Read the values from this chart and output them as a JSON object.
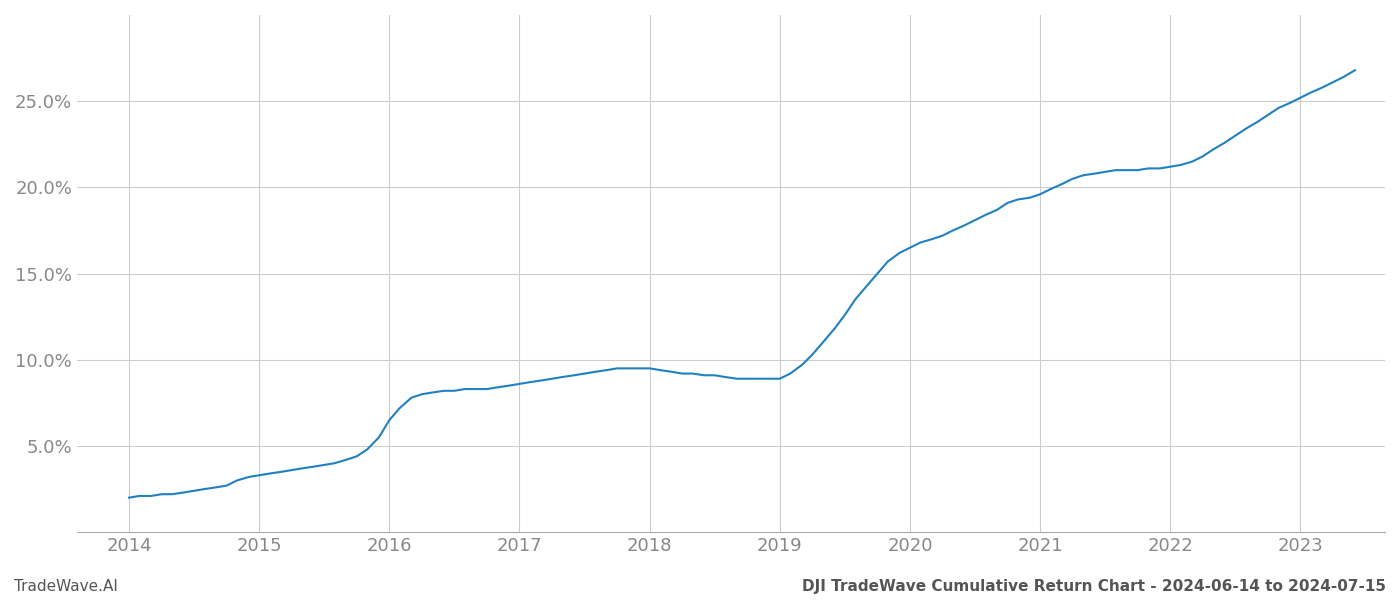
{
  "x_data": [
    2014.0,
    2014.08,
    2014.17,
    2014.25,
    2014.33,
    2014.42,
    2014.5,
    2014.58,
    2014.67,
    2014.75,
    2014.83,
    2014.92,
    2015.0,
    2015.08,
    2015.17,
    2015.25,
    2015.33,
    2015.42,
    2015.5,
    2015.58,
    2015.67,
    2015.75,
    2015.83,
    2015.92,
    2016.0,
    2016.08,
    2016.17,
    2016.25,
    2016.33,
    2016.42,
    2016.5,
    2016.58,
    2016.67,
    2016.75,
    2016.83,
    2016.92,
    2017.0,
    2017.08,
    2017.17,
    2017.25,
    2017.33,
    2017.42,
    2017.5,
    2017.58,
    2017.67,
    2017.75,
    2017.83,
    2017.92,
    2018.0,
    2018.08,
    2018.17,
    2018.25,
    2018.33,
    2018.42,
    2018.5,
    2018.58,
    2018.67,
    2018.75,
    2018.83,
    2018.92,
    2019.0,
    2019.08,
    2019.17,
    2019.25,
    2019.33,
    2019.42,
    2019.5,
    2019.58,
    2019.67,
    2019.75,
    2019.83,
    2019.92,
    2020.0,
    2020.08,
    2020.17,
    2020.25,
    2020.33,
    2020.42,
    2020.5,
    2020.58,
    2020.67,
    2020.75,
    2020.83,
    2020.92,
    2021.0,
    2021.08,
    2021.17,
    2021.25,
    2021.33,
    2021.42,
    2021.5,
    2021.58,
    2021.67,
    2021.75,
    2021.83,
    2021.92,
    2022.0,
    2022.08,
    2022.17,
    2022.25,
    2022.33,
    2022.42,
    2022.5,
    2022.58,
    2022.67,
    2022.75,
    2022.83,
    2022.92,
    2023.0,
    2023.08,
    2023.17,
    2023.25,
    2023.33,
    2023.42
  ],
  "y_data": [
    0.02,
    0.021,
    0.021,
    0.022,
    0.022,
    0.023,
    0.024,
    0.025,
    0.026,
    0.027,
    0.03,
    0.032,
    0.033,
    0.034,
    0.035,
    0.036,
    0.037,
    0.038,
    0.039,
    0.04,
    0.042,
    0.044,
    0.048,
    0.055,
    0.065,
    0.072,
    0.078,
    0.08,
    0.081,
    0.082,
    0.082,
    0.083,
    0.083,
    0.083,
    0.084,
    0.085,
    0.086,
    0.087,
    0.088,
    0.089,
    0.09,
    0.091,
    0.092,
    0.093,
    0.094,
    0.095,
    0.095,
    0.095,
    0.095,
    0.094,
    0.093,
    0.092,
    0.092,
    0.091,
    0.091,
    0.09,
    0.089,
    0.089,
    0.089,
    0.089,
    0.089,
    0.092,
    0.097,
    0.103,
    0.11,
    0.118,
    0.126,
    0.135,
    0.143,
    0.15,
    0.157,
    0.162,
    0.165,
    0.168,
    0.17,
    0.172,
    0.175,
    0.178,
    0.181,
    0.184,
    0.187,
    0.191,
    0.193,
    0.194,
    0.196,
    0.199,
    0.202,
    0.205,
    0.207,
    0.208,
    0.209,
    0.21,
    0.21,
    0.21,
    0.211,
    0.211,
    0.212,
    0.213,
    0.215,
    0.218,
    0.222,
    0.226,
    0.23,
    0.234,
    0.238,
    0.242,
    0.246,
    0.249,
    0.252,
    0.255,
    0.258,
    0.261,
    0.264,
    0.268
  ],
  "line_color": "#2080c0",
  "line_width": 1.5,
  "background_color": "#ffffff",
  "grid_color": "#cccccc",
  "tick_label_color": "#888888",
  "ylim": [
    0.0,
    0.3
  ],
  "yticks": [
    0.05,
    0.1,
    0.15,
    0.2,
    0.25
  ],
  "x_tick_years": [
    2014,
    2015,
    2016,
    2017,
    2018,
    2019,
    2020,
    2021,
    2022,
    2023
  ],
  "xlim_start": 2013.6,
  "xlim_end": 2023.65,
  "footer_left": "TradeWave.AI",
  "footer_right": "DJI TradeWave Cumulative Return Chart - 2024-06-14 to 2024-07-15",
  "footer_color": "#555555",
  "footer_fontsize": 11,
  "tick_fontsize": 13
}
